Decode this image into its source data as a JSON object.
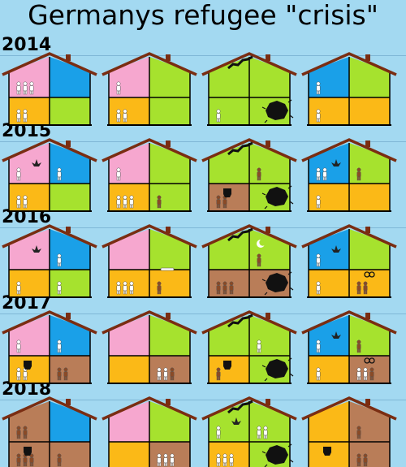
{
  "title": "Germanys refugee \"crisis\"",
  "colors": {
    "background": "#a3d9f1",
    "pink": "#f6a7cf",
    "blue": "#1aa0e8",
    "green": "#a6e22e",
    "yellow": "#fbb917",
    "brown": "#b97d58",
    "roof_outline": "#7a2d12",
    "person_light": "#ffffff",
    "person_dark": "#8a4a26"
  },
  "years": [
    {
      "label": "2014",
      "houses": [
        {
          "rooms": [
            "pink",
            "blue",
            "yellow",
            "green"
          ],
          "light": [
            3,
            0,
            2,
            0
          ],
          "dark": [
            0,
            0,
            0,
            0
          ]
        },
        {
          "rooms": [
            "pink",
            "green",
            "yellow",
            "green"
          ],
          "light": [
            1,
            0,
            2,
            0
          ],
          "dark": [
            0,
            0,
            0,
            0
          ]
        },
        {
          "rooms": [
            "green",
            "green",
            "green",
            "green"
          ],
          "light": [
            0,
            0,
            1,
            0
          ],
          "dark": [
            0,
            0,
            0,
            0
          ],
          "crack": true,
          "hole": true
        },
        {
          "rooms": [
            "blue",
            "green",
            "yellow",
            "yellow"
          ],
          "light": [
            1,
            0,
            1,
            0
          ],
          "dark": [
            0,
            0,
            0,
            0
          ]
        }
      ]
    },
    {
      "label": "2015",
      "houses": [
        {
          "rooms": [
            "pink",
            "blue",
            "yellow",
            "green"
          ],
          "light": [
            1,
            1,
            2,
            0
          ],
          "dark": [
            0,
            0,
            0,
            0
          ],
          "leaf": true
        },
        {
          "rooms": [
            "pink",
            "green",
            "yellow",
            "green"
          ],
          "light": [
            1,
            0,
            3,
            0
          ],
          "dark": [
            0,
            0,
            0,
            1
          ]
        },
        {
          "rooms": [
            "green",
            "green",
            "brown",
            "green"
          ],
          "light": [
            0,
            0,
            0,
            0
          ],
          "dark": [
            0,
            1,
            2,
            0
          ],
          "crack": true,
          "hole": true,
          "fist": true
        },
        {
          "rooms": [
            "blue",
            "green",
            "yellow",
            "yellow"
          ],
          "light": [
            2,
            0,
            1,
            0
          ],
          "dark": [
            0,
            1,
            0,
            0
          ],
          "leaf": true
        }
      ]
    },
    {
      "label": "2016",
      "houses": [
        {
          "rooms": [
            "pink",
            "blue",
            "yellow",
            "green"
          ],
          "light": [
            0,
            1,
            1,
            1
          ],
          "dark": [
            0,
            0,
            0,
            0
          ],
          "leaf": true
        },
        {
          "rooms": [
            "pink",
            "green",
            "yellow",
            "yellow"
          ],
          "light": [
            0,
            0,
            3,
            0
          ],
          "dark": [
            0,
            0,
            0,
            1
          ],
          "syringe": true
        },
        {
          "rooms": [
            "green",
            "green",
            "brown",
            "brown"
          ],
          "light": [
            0,
            0,
            0,
            0
          ],
          "dark": [
            0,
            1,
            3,
            0
          ],
          "crack": true,
          "hole": true,
          "moon": true
        },
        {
          "rooms": [
            "blue",
            "green",
            "yellow",
            "yellow"
          ],
          "light": [
            1,
            0,
            1,
            0
          ],
          "dark": [
            0,
            0,
            0,
            2
          ],
          "leaf": true,
          "symbols": true
        }
      ]
    },
    {
      "label": "2017",
      "houses": [
        {
          "rooms": [
            "pink",
            "blue",
            "yellow",
            "brown"
          ],
          "light": [
            1,
            1,
            2,
            0
          ],
          "dark": [
            0,
            0,
            0,
            2
          ],
          "fist": true
        },
        {
          "rooms": [
            "pink",
            "green",
            "yellow",
            "brown"
          ],
          "light": [
            0,
            0,
            0,
            2
          ],
          "dark": [
            0,
            0,
            0,
            1
          ]
        },
        {
          "rooms": [
            "green",
            "green",
            "yellow",
            "green"
          ],
          "light": [
            0,
            1,
            0,
            0
          ],
          "dark": [
            0,
            0,
            1,
            0
          ],
          "crack": true,
          "hole": true,
          "fist": true
        },
        {
          "rooms": [
            "blue",
            "green",
            "yellow",
            "brown"
          ],
          "light": [
            1,
            0,
            1,
            2
          ],
          "dark": [
            0,
            1,
            0,
            1
          ],
          "leaf": true,
          "symbols": true
        }
      ]
    },
    {
      "label": "2018",
      "houses": [
        {
          "rooms": [
            "brown",
            "blue",
            "brown",
            "brown"
          ],
          "light": [
            0,
            0,
            0,
            0
          ],
          "dark": [
            2,
            0,
            3,
            1
          ],
          "fist": true
        },
        {
          "rooms": [
            "pink",
            "green",
            "yellow",
            "brown"
          ],
          "light": [
            0,
            0,
            0,
            3
          ],
          "dark": [
            0,
            0,
            0,
            0
          ]
        },
        {
          "rooms": [
            "green",
            "green",
            "yellow",
            "green"
          ],
          "light": [
            1,
            2,
            3,
            0
          ],
          "dark": [
            0,
            0,
            0,
            0
          ],
          "crack": true,
          "hole": true,
          "leaf": true
        },
        {
          "rooms": [
            "yellow",
            "brown",
            "yellow",
            "brown"
          ],
          "light": [
            0,
            0,
            0,
            0
          ],
          "dark": [
            0,
            1,
            0,
            2
          ],
          "fist": true
        }
      ]
    }
  ]
}
